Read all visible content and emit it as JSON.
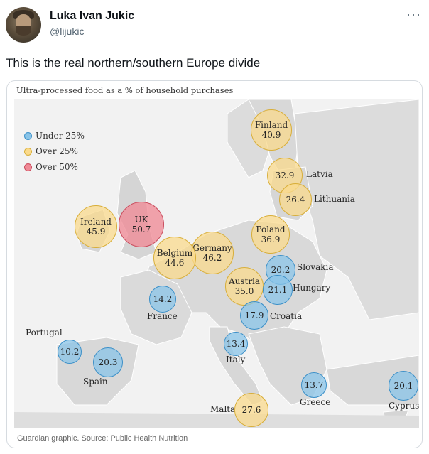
{
  "tweet": {
    "author_name": "Luka Ivan Jukic",
    "author_handle": "@lijukic",
    "more_icon": "···",
    "text": "This is the real northern/southern Europe divide"
  },
  "card": {
    "title": "Ultra-processed food as a % of household purchases",
    "source": "Guardian graphic. Source: Public Health Nutrition",
    "legend": [
      {
        "label": "Under 25%",
        "color": "#89c4e8"
      },
      {
        "label": "Over 25%",
        "color": "#fada8c"
      },
      {
        "label": "Over 50%",
        "color": "#f08a96"
      }
    ]
  },
  "chart_data": {
    "type": "bubble-map",
    "title": "Ultra-processed food as a % of household purchases",
    "unit": "%",
    "categories_legend": [
      "Under 25%",
      "Over 25%",
      "Over 50%"
    ],
    "countries": [
      {
        "name": "Finland",
        "value": 40.9,
        "category": "Over 25%"
      },
      {
        "name": "Latvia",
        "value": 32.9,
        "category": "Over 25%"
      },
      {
        "name": "Lithuania",
        "value": 26.4,
        "category": "Over 25%"
      },
      {
        "name": "Ireland",
        "value": 45.9,
        "category": "Over 25%"
      },
      {
        "name": "UK",
        "value": 50.7,
        "category": "Over 50%"
      },
      {
        "name": "Poland",
        "value": 36.9,
        "category": "Over 25%"
      },
      {
        "name": "Germany",
        "value": 46.2,
        "category": "Over 25%"
      },
      {
        "name": "Belgium",
        "value": 44.6,
        "category": "Over 25%"
      },
      {
        "name": "Slovakia",
        "value": 20.2,
        "category": "Under 25%"
      },
      {
        "name": "Austria",
        "value": 35.0,
        "category": "Over 25%"
      },
      {
        "name": "Hungary",
        "value": 21.1,
        "category": "Under 25%"
      },
      {
        "name": "France",
        "value": 14.2,
        "category": "Under 25%"
      },
      {
        "name": "Croatia",
        "value": 17.9,
        "category": "Under 25%"
      },
      {
        "name": "Portugal",
        "value": 10.2,
        "category": "Under 25%"
      },
      {
        "name": "Italy",
        "value": 13.4,
        "category": "Under 25%"
      },
      {
        "name": "Spain",
        "value": 20.3,
        "category": "Under 25%"
      },
      {
        "name": "Greece",
        "value": 13.7,
        "category": "Under 25%"
      },
      {
        "name": "Cyprus",
        "value": 20.1,
        "category": "Under 25%"
      },
      {
        "name": "Malta",
        "value": 27.6,
        "category": "Over 25%"
      }
    ]
  },
  "labels": {
    "finland": {
      "name": "Finland",
      "value": "40.9"
    },
    "latvia": {
      "name": "Latvia",
      "value": "32.9"
    },
    "lithuania": {
      "name": "Lithuania",
      "value": "26.4"
    },
    "ireland": {
      "name": "Ireland",
      "value": "45.9"
    },
    "uk": {
      "name": "UK",
      "value": "50.7"
    },
    "poland": {
      "name": "Poland",
      "value": "36.9"
    },
    "germany": {
      "name": "Germany",
      "value": "46.2"
    },
    "belgium": {
      "name": "Belgium",
      "value": "44.6"
    },
    "slovakia": {
      "name": "Slovakia",
      "value": "20.2"
    },
    "austria": {
      "name": "Austria",
      "value": "35.0"
    },
    "hungary": {
      "name": "Hungary",
      "value": "21.1"
    },
    "france": {
      "name": "France",
      "value": "14.2"
    },
    "croatia": {
      "name": "Croatia",
      "value": "17.9"
    },
    "portugal": {
      "name": "Portugal",
      "value": "10.2"
    },
    "italy": {
      "name": "Italy",
      "value": "13.4"
    },
    "spain": {
      "name": "Spain",
      "value": "20.3"
    },
    "greece": {
      "name": "Greece",
      "value": "13.7"
    },
    "cyprus": {
      "name": "Cyprus",
      "value": "20.1"
    },
    "malta": {
      "name": "Malta",
      "value": "27.6"
    }
  }
}
